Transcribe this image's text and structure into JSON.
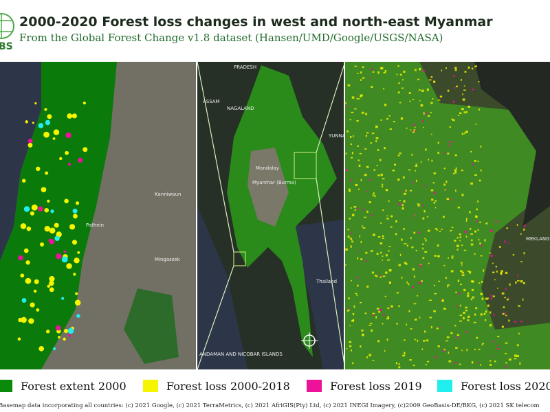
{
  "header": {
    "logo_text": "BS",
    "title": "2000-2020 Forest loss changes in  west and north-east Myanmar",
    "subtitle": "From the  Global Forest Change v1.8  dataset (Hansen/UMD/Google/USGS/NASA)"
  },
  "map_labels": {
    "left": [
      "Pathein",
      "Kanniwaun",
      "Mingaszek"
    ],
    "middle": [
      "PRADESH",
      "ASSAM",
      "NAGALAND",
      "Mandalay",
      "Myanmar (Burma)",
      "Thailand",
      "ANDAMAN AND NICOBAR ISLANDS",
      "YUNNAN"
    ],
    "right": [
      "MEKLANG AUTONOMOUS"
    ]
  },
  "legend": [
    {
      "label": "Forest extent 2000",
      "color": "#0a8a0a"
    },
    {
      "label": "Forest loss 2000-2018",
      "color": "#f5f500"
    },
    {
      "label": "Forest loss 2019",
      "color": "#ee1199"
    },
    {
      "label": "Forest loss 2020",
      "color": "#22eeee"
    }
  ],
  "attribution": "Basemap data incorporating all countries: (c) 2021 Google, (c) 2021 TerraMetrics, (c) 2021 AfriGIS(Pty) Ltd, (c) 2021 INEGI Imagery, (c)2009 GeoBasis-DE/BKG, (c) 2021 SK telecom"
}
